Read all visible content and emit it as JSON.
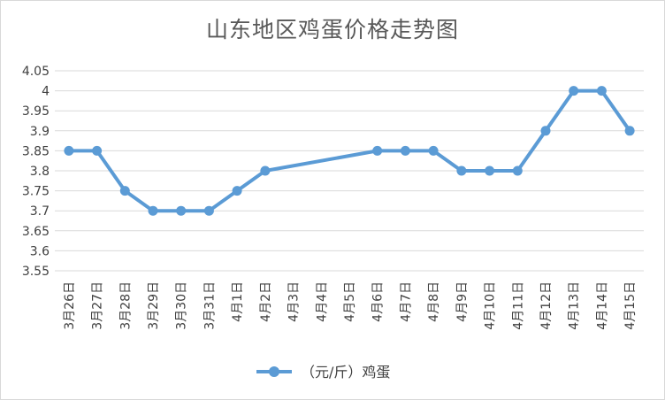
{
  "chart_data": {
    "type": "line",
    "title": "山东地区鸡蛋价格走势图",
    "xlabel": "",
    "ylabel": "",
    "categories": [
      "3月26日",
      "3月27日",
      "3月28日",
      "3月29日",
      "3月30日",
      "3月31日",
      "4月1日",
      "4月2日",
      "4月3日",
      "4月4日",
      "4月5日",
      "4月6日",
      "4月7日",
      "4月8日",
      "4月9日",
      "4月10日",
      "4月11日",
      "4月12日",
      "4月13日",
      "4月14日",
      "4月15日"
    ],
    "series": [
      {
        "name": "（元/斤）鸡蛋",
        "values": [
          3.85,
          3.85,
          3.75,
          3.7,
          3.7,
          3.7,
          3.75,
          3.8,
          null,
          null,
          null,
          3.85,
          3.85,
          3.85,
          3.8,
          3.8,
          3.8,
          3.9,
          4.0,
          4.0,
          3.9
        ]
      }
    ],
    "ylim": [
      3.55,
      4.05
    ],
    "yticks": [
      "3.55",
      "3.6",
      "3.65",
      "3.7",
      "3.75",
      "3.8",
      "3.85",
      "3.9",
      "3.95",
      "4",
      "4.05"
    ],
    "grid": true,
    "legend": "bottom-center",
    "line_color": "#5b9bd5",
    "grid_color": "#d9d9d9"
  }
}
